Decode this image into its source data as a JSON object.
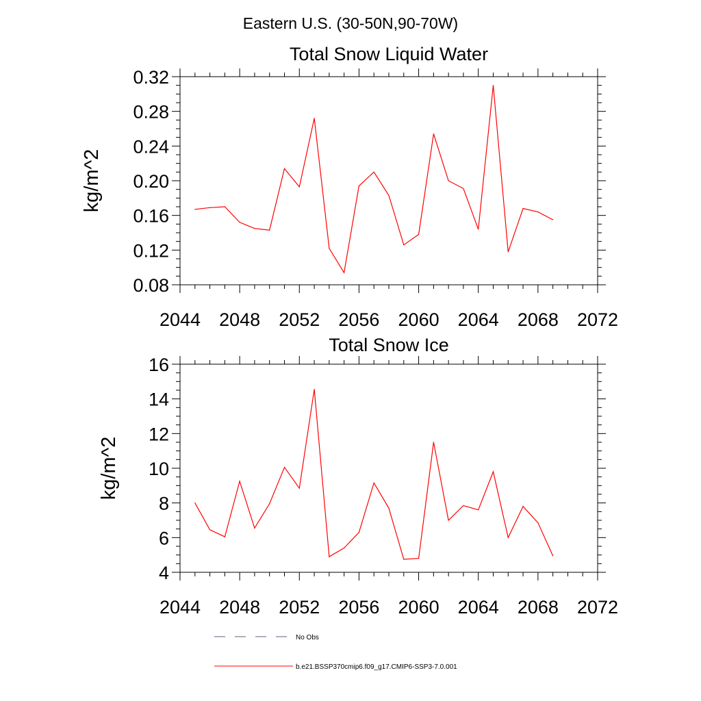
{
  "header": {
    "title": "Eastern U.S. (30-50N,90-70W)"
  },
  "chart_data": [
    {
      "type": "line",
      "title": "Total Snow Liquid Water",
      "xlabel": "",
      "ylabel": "kg/m^2",
      "xlim": [
        2044,
        2072
      ],
      "ylim": [
        0.08,
        0.32
      ],
      "x_ticks": [
        "2044",
        "2048",
        "2052",
        "2056",
        "2060",
        "2064",
        "2068",
        "2072"
      ],
      "y_ticks": [
        "0.08",
        "0.12",
        "0.16",
        "0.20",
        "0.24",
        "0.28",
        "0.32"
      ],
      "grid": false,
      "series": [
        {
          "name": "b.e21.BSSP370cmip6.f09_g17.CMIP6-SSP3-7.0.001",
          "color": "#ff0000",
          "x": [
            2045,
            2046,
            2047,
            2048,
            2049,
            2050,
            2051,
            2052,
            2053,
            2054,
            2055,
            2056,
            2057,
            2058,
            2059,
            2060,
            2061,
            2062,
            2063,
            2064,
            2065,
            2066,
            2067,
            2068,
            2069
          ],
          "values": [
            0.167,
            0.169,
            0.17,
            0.152,
            0.145,
            0.143,
            0.214,
            0.193,
            0.272,
            0.122,
            0.094,
            0.194,
            0.21,
            0.183,
            0.126,
            0.138,
            0.254,
            0.2,
            0.191,
            0.144,
            0.31,
            0.118,
            0.168,
            0.164,
            0.155
          ]
        }
      ]
    },
    {
      "type": "line",
      "title": "Total Snow Ice",
      "xlabel": "",
      "ylabel": "kg/m^2",
      "xlim": [
        2044,
        2072
      ],
      "ylim": [
        4,
        16
      ],
      "x_ticks": [
        "2044",
        "2048",
        "2052",
        "2056",
        "2060",
        "2064",
        "2068",
        "2072"
      ],
      "y_ticks": [
        "4",
        "6",
        "8",
        "10",
        "12",
        "14",
        "16"
      ],
      "grid": false,
      "series": [
        {
          "name": "b.e21.BSSP370cmip6.f09_g17.CMIP6-SSP3-7.0.001",
          "color": "#ff0000",
          "x": [
            2045,
            2046,
            2047,
            2048,
            2049,
            2050,
            2051,
            2052,
            2053,
            2054,
            2055,
            2056,
            2057,
            2058,
            2059,
            2060,
            2061,
            2062,
            2063,
            2064,
            2065,
            2066,
            2067,
            2068,
            2069
          ],
          "values": [
            8.0,
            6.45,
            6.05,
            9.25,
            6.55,
            7.95,
            10.05,
            8.85,
            14.55,
            4.9,
            5.4,
            6.3,
            9.15,
            7.7,
            4.75,
            4.8,
            11.5,
            7.0,
            7.85,
            7.6,
            9.8,
            6.0,
            7.8,
            6.85,
            4.95
          ]
        }
      ]
    }
  ],
  "legend": {
    "position": "bottom",
    "items": [
      {
        "label": "No Obs",
        "style": "dashed",
        "color": "#5c5c7a"
      },
      {
        "label": "b.e21.BSSP370cmip6.f09_g17.CMIP6-SSP3-7.0.001",
        "style": "solid",
        "color": "#ff0000"
      }
    ]
  }
}
